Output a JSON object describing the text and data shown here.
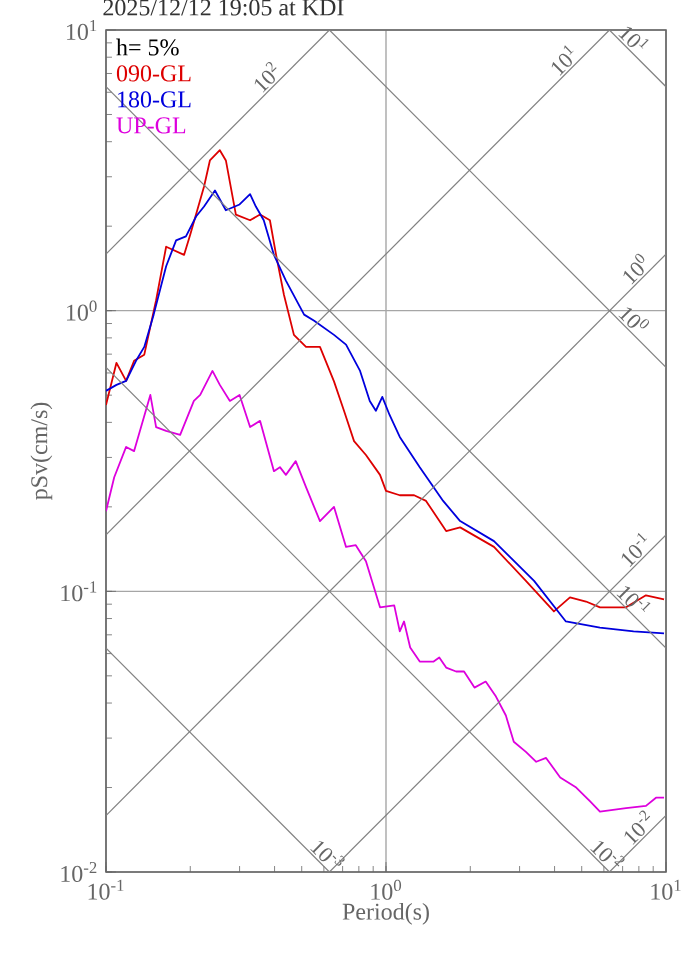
{
  "chart_data": {
    "type": "line",
    "title": "2025/12/12 19:05 at KDI",
    "xlabel": "Period(s)",
    "ylabel": "pSv(cm/s)",
    "log": "xy",
    "grid": true,
    "legend": "top left",
    "xlim": [
      0.1,
      10
    ],
    "ylim": [
      0.01,
      10
    ],
    "xticks": [
      {
        "value": 0.1,
        "label": "10$^{-1}$"
      },
      {
        "value": 1,
        "label": "10$^{0}$"
      },
      {
        "value": 10,
        "label": "10$^{1}$"
      }
    ],
    "yticks": [
      {
        "value": 0.01,
        "label": "10$^{-2}$"
      },
      {
        "value": 0.1,
        "label": "10$^{-1}$"
      },
      {
        "value": 1,
        "label": "10$^{0}$"
      },
      {
        "value": 10,
        "label": "10$^{1}$"
      }
    ],
    "series": [
      {
        "name": "090-GL",
        "color": "#dd0000",
        "x": [
          0.1,
          0.109,
          0.118,
          0.126,
          0.137,
          0.151,
          0.164,
          0.19,
          0.2,
          0.224,
          0.235,
          0.255,
          0.268,
          0.291,
          0.327,
          0.355,
          0.385,
          0.405,
          0.432,
          0.469,
          0.518,
          0.581,
          0.652,
          0.708,
          0.769,
          0.848,
          0.952,
          1.0,
          1.12,
          1.26,
          1.39,
          1.64,
          1.84,
          2.43,
          3.16,
          3.98,
          4.54,
          5.18,
          5.81,
          7.2,
          8.48,
          9.84
        ],
        "values": [
          0.461,
          0.652,
          0.562,
          0.663,
          0.697,
          1.09,
          1.69,
          1.58,
          1.87,
          2.77,
          3.43,
          3.73,
          3.43,
          2.2,
          2.1,
          2.2,
          2.1,
          1.58,
          1.14,
          0.82,
          0.743,
          0.743,
          0.56,
          0.44,
          0.343,
          0.306,
          0.26,
          0.228,
          0.22,
          0.22,
          0.21,
          0.164,
          0.169,
          0.144,
          0.109,
          0.0848,
          0.0952,
          0.092,
          0.0877,
          0.0877,
          0.0968,
          0.0936
        ]
      },
      {
        "name": "180-GL",
        "color": "#0000dd",
        "x": [
          0.1,
          0.109,
          0.118,
          0.128,
          0.137,
          0.148,
          0.164,
          0.178,
          0.193,
          0.21,
          0.224,
          0.245,
          0.268,
          0.3,
          0.327,
          0.343,
          0.366,
          0.398,
          0.439,
          0.51,
          0.554,
          0.652,
          0.72,
          0.808,
          0.875,
          0.92,
          0.97,
          1.03,
          1.12,
          1.32,
          1.6,
          1.84,
          2.43,
          3.38,
          4.39,
          5.81,
          7.66,
          9.84
        ],
        "values": [
          0.518,
          0.544,
          0.562,
          0.663,
          0.743,
          0.968,
          1.44,
          1.78,
          1.84,
          2.17,
          2.35,
          2.68,
          2.28,
          2.39,
          2.6,
          2.35,
          2.1,
          1.58,
          1.28,
          0.968,
          0.921,
          0.82,
          0.757,
          0.61,
          0.477,
          0.44,
          0.493,
          0.425,
          0.355,
          0.277,
          0.21,
          0.178,
          0.151,
          0.109,
          0.0781,
          0.0743,
          0.072,
          0.0708
        ]
      },
      {
        "name": "UP-GL",
        "color": "#dd00dd",
        "x": [
          0.1,
          0.107,
          0.118,
          0.126,
          0.144,
          0.151,
          0.164,
          0.184,
          0.206,
          0.217,
          0.24,
          0.255,
          0.277,
          0.3,
          0.327,
          0.355,
          0.398,
          0.418,
          0.439,
          0.476,
          0.518,
          0.581,
          0.652,
          0.72,
          0.78,
          0.848,
          0.952,
          1.07,
          1.12,
          1.16,
          1.22,
          1.32,
          1.48,
          1.55,
          1.64,
          1.78,
          1.9,
          2.07,
          2.27,
          2.46,
          2.68,
          2.86,
          3.16,
          3.44,
          3.73,
          4.19,
          4.78,
          5.37,
          5.81,
          7.2,
          8.48,
          9.21,
          9.84
        ],
        "values": [
          0.193,
          0.255,
          0.327,
          0.316,
          0.501,
          0.385,
          0.373,
          0.361,
          0.477,
          0.501,
          0.61,
          0.544,
          0.477,
          0.501,
          0.385,
          0.405,
          0.268,
          0.277,
          0.26,
          0.291,
          0.235,
          0.178,
          0.2,
          0.144,
          0.146,
          0.128,
          0.0877,
          0.0891,
          0.072,
          0.0781,
          0.0631,
          0.0562,
          0.0562,
          0.0581,
          0.0535,
          0.0518,
          0.0518,
          0.0454,
          0.0477,
          0.0425,
          0.0361,
          0.0291,
          0.0268,
          0.0247,
          0.0255,
          0.0217,
          0.02,
          0.0178,
          0.0164,
          0.0169,
          0.0172,
          0.0184,
          0.0184
        ]
      },
      {
        "color": "#808080",
        "x": [
          0.1,
          0.628
        ],
        "values": [
          1.59,
          10
        ]
      },
      {
        "color": "#808080",
        "x": [
          0.1,
          6.28
        ],
        "values": [
          0.159,
          10
        ]
      },
      {
        "color": "#808080",
        "x": [
          0.1,
          10
        ],
        "values": [
          0.0159,
          1.59
        ]
      },
      {
        "color": "#808080",
        "x": [
          0.628,
          10
        ],
        "values": [
          0.01,
          0.159
        ]
      },
      {
        "color": "#808080",
        "x": [
          6.28,
          10
        ],
        "values": [
          0.01,
          0.0159
        ]
      },
      {
        "color": "#808080",
        "x": [
          6.28,
          10
        ],
        "values": [
          10,
          6.28
        ]
      },
      {
        "color": "#808080",
        "x": [
          0.628,
          10
        ],
        "values": [
          10,
          0.628
        ]
      },
      {
        "color": "#808080",
        "x": [
          0.1,
          10
        ],
        "values": [
          6.28,
          0.0628
        ]
      },
      {
        "color": "#808080",
        "x": [
          0.1,
          6.28
        ],
        "values": [
          0.628,
          0.01
        ]
      },
      {
        "color": "#808080",
        "x": [
          0.1,
          0.628
        ],
        "values": [
          0.0628,
          0.01
        ]
      }
    ],
    "annotations": [
      "h= 5%",
      {
        "text": "10$^{2}$",
        "x": 0.4,
        "y": 6.37
      },
      {
        "text": "10$^{1}$",
        "x": 4.6,
        "y": 7.32
      },
      {
        "text": "10$^{0}$",
        "x": 8.3,
        "y": 1.32
      },
      {
        "text": "10$^{-1}$",
        "x": 8.3,
        "y": 0.132
      },
      {
        "text": "10$^{-2}$",
        "x": 8.5,
        "y": 0.0135
      },
      {
        "text": "10$^{1}$",
        "x": 7.2,
        "y": 8.72
      },
      {
        "text": "10$^{0}$",
        "x": 7.2,
        "y": 0.872
      },
      {
        "text": "10$^{-1}$",
        "x": 7.2,
        "y": 0.0872
      },
      {
        "text": "10$^{-2}$",
        "x": 5.8,
        "y": 0.0108
      },
      {
        "text": "10$^{-3}$",
        "x": 0.58,
        "y": 0.0108
      }
    ]
  }
}
